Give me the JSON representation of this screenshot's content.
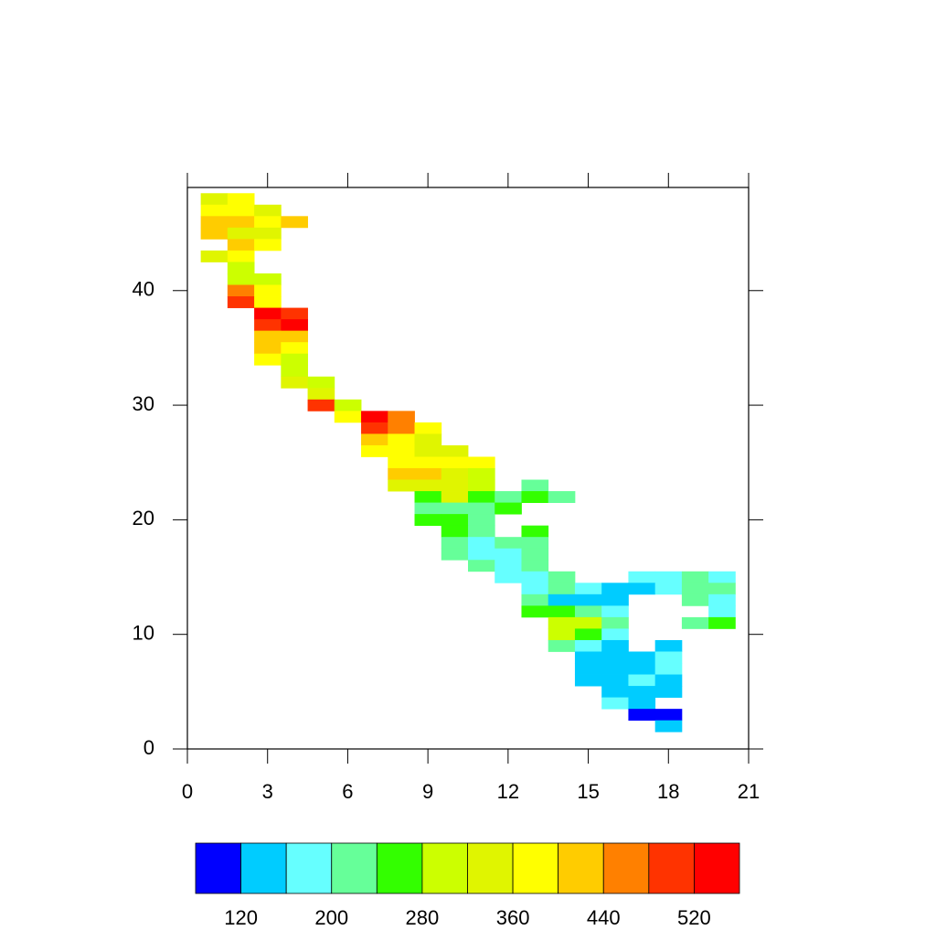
{
  "chart_data": {
    "type": "heatmap",
    "xlim": [
      0,
      21
    ],
    "ylim": [
      0,
      49
    ],
    "xticks": [
      0,
      3,
      6,
      9,
      12,
      15,
      18,
      21
    ],
    "yticks": [
      0,
      10,
      20,
      30,
      40
    ],
    "x": [
      1,
      2,
      1,
      2,
      3,
      1,
      2,
      3,
      4,
      1,
      2,
      3,
      2,
      3,
      1,
      2,
      2,
      2,
      3,
      2,
      3,
      2,
      3,
      3,
      4,
      3,
      4,
      3,
      4,
      3,
      4,
      3,
      4,
      4,
      4,
      5,
      5,
      5,
      6,
      6,
      7,
      8,
      7,
      8,
      9,
      7,
      8,
      9,
      7,
      8,
      9,
      10,
      8,
      9,
      10,
      11,
      8,
      9,
      10,
      11,
      8,
      9,
      10,
      11,
      13,
      9,
      10,
      11,
      12,
      13,
      14,
      9,
      10,
      11,
      12,
      9,
      10,
      11,
      10,
      11,
      13,
      10,
      11,
      12,
      13,
      10,
      11,
      12,
      13,
      11,
      12,
      13,
      12,
      13,
      14,
      17,
      18,
      19,
      20,
      13,
      14,
      15,
      16,
      17,
      18,
      19,
      20,
      13,
      14,
      15,
      16,
      19,
      20,
      13,
      14,
      15,
      16,
      20,
      14,
      15,
      16,
      19,
      20,
      14,
      15,
      16,
      14,
      15,
      16,
      18,
      15,
      16,
      17,
      18,
      15,
      16,
      17,
      18,
      15,
      16,
      17,
      18,
      16,
      17,
      18,
      16,
      17,
      17,
      18,
      18
    ],
    "y": [
      48,
      48,
      47,
      47,
      47,
      46,
      46,
      46,
      46,
      45,
      45,
      45,
      44,
      44,
      43,
      43,
      42,
      41,
      41,
      40,
      40,
      39,
      39,
      38,
      38,
      37,
      37,
      36,
      36,
      35,
      35,
      34,
      34,
      33,
      32,
      32,
      31,
      30,
      30,
      29,
      29,
      29,
      28,
      28,
      28,
      27,
      27,
      27,
      26,
      26,
      26,
      26,
      25,
      25,
      25,
      25,
      24,
      24,
      24,
      24,
      23,
      23,
      23,
      23,
      23,
      22,
      22,
      22,
      22,
      22,
      22,
      21,
      21,
      21,
      21,
      20,
      20,
      20,
      19,
      19,
      19,
      18,
      18,
      18,
      18,
      17,
      17,
      17,
      17,
      16,
      16,
      16,
      15,
      15,
      15,
      15,
      15,
      15,
      15,
      14,
      14,
      14,
      14,
      14,
      14,
      14,
      14,
      13,
      13,
      13,
      13,
      13,
      13,
      12,
      12,
      12,
      12,
      12,
      11,
      11,
      11,
      11,
      11,
      10,
      10,
      10,
      9,
      9,
      9,
      9,
      8,
      8,
      8,
      8,
      7,
      7,
      7,
      7,
      6,
      6,
      6,
      6,
      5,
      5,
      5,
      4,
      4,
      3,
      3,
      2
    ],
    "values": [
      340,
      380,
      380,
      380,
      340,
      420,
      420,
      380,
      420,
      420,
      340,
      340,
      420,
      380,
      340,
      380,
      300,
      300,
      300,
      460,
      380,
      500,
      380,
      540,
      500,
      500,
      540,
      420,
      420,
      420,
      380,
      380,
      300,
      300,
      340,
      300,
      340,
      500,
      300,
      380,
      540,
      460,
      500,
      460,
      380,
      420,
      380,
      340,
      380,
      380,
      340,
      340,
      380,
      380,
      380,
      380,
      420,
      420,
      340,
      300,
      340,
      340,
      340,
      300,
      220,
      260,
      340,
      260,
      220,
      260,
      220,
      220,
      220,
      220,
      260,
      260,
      260,
      220,
      260,
      220,
      260,
      220,
      180,
      220,
      220,
      220,
      180,
      180,
      220,
      220,
      180,
      220,
      180,
      180,
      220,
      180,
      180,
      220,
      180,
      180,
      220,
      180,
      140,
      140,
      180,
      220,
      220,
      220,
      140,
      140,
      140,
      220,
      180,
      260,
      260,
      220,
      180,
      180,
      300,
      300,
      220,
      220,
      260,
      300,
      260,
      180,
      220,
      180,
      140,
      140,
      140,
      140,
      140,
      180,
      140,
      140,
      140,
      180,
      140,
      140,
      180,
      140,
      140,
      140,
      140,
      180,
      140,
      100,
      100,
      140
    ],
    "levels": [
      120,
      160,
      200,
      240,
      280,
      320,
      360,
      400,
      440,
      480,
      520
    ],
    "colors": [
      "#0000ff",
      "#00ccff",
      "#66ffff",
      "#66ff99",
      "#33ff00",
      "#ccff00",
      "#e0f500",
      "#ffff00",
      "#ffcc00",
      "#ff8000",
      "#ff3300",
      "#ff0000"
    ],
    "colorbar_ticks": [
      120,
      200,
      280,
      360,
      440,
      520
    ]
  }
}
